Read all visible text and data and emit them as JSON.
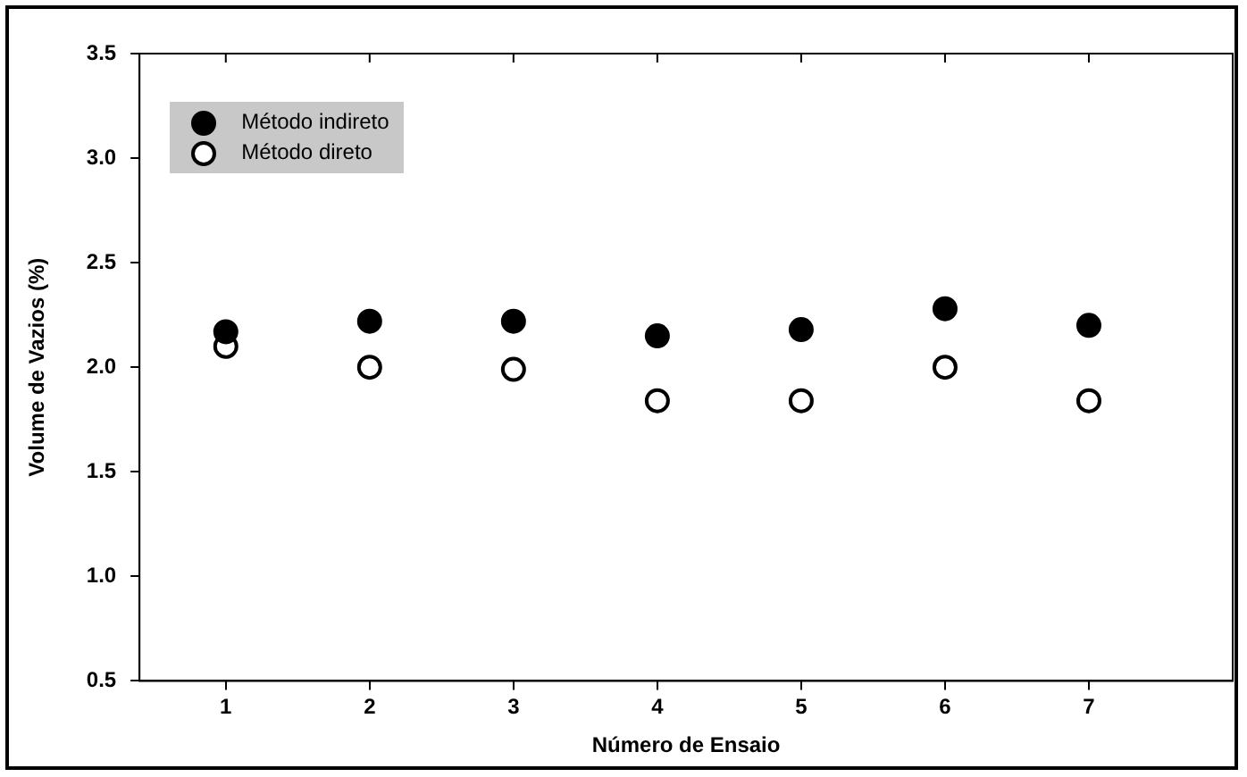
{
  "chart_data": {
    "type": "scatter",
    "xlabel": "Número de Ensaio",
    "ylabel": "Volume de Vazios (%)",
    "x": [
      1,
      2,
      3,
      4,
      5,
      6,
      7
    ],
    "series": [
      {
        "name": "Método indireto",
        "color": "#000000",
        "marker": "circle",
        "values": [
          2.17,
          2.22,
          2.22,
          2.15,
          2.18,
          2.28,
          2.2
        ]
      },
      {
        "name": "Método direto",
        "color": "#ffffff",
        "marker": "circle",
        "values": [
          2.1,
          2.0,
          1.99,
          1.84,
          1.84,
          2.0,
          1.84
        ]
      }
    ],
    "xlim": [
      0.4,
      8
    ],
    "xticks": [
      1,
      2,
      3,
      4,
      5,
      6,
      7
    ],
    "ylim": [
      0.5,
      3.5
    ],
    "yticks": [
      {
        "value": 0.5,
        "label": "0.5"
      },
      {
        "value": 1,
        "label": "1.0"
      },
      {
        "value": 1.5,
        "label": "1.5"
      },
      {
        "value": 2,
        "label": "2.0"
      },
      {
        "value": 2.5,
        "label": "2.5"
      },
      {
        "value": 3,
        "label": "3.0"
      },
      {
        "value": 3.5,
        "label": "3.5"
      }
    ],
    "grid": false,
    "legend": "top left"
  }
}
